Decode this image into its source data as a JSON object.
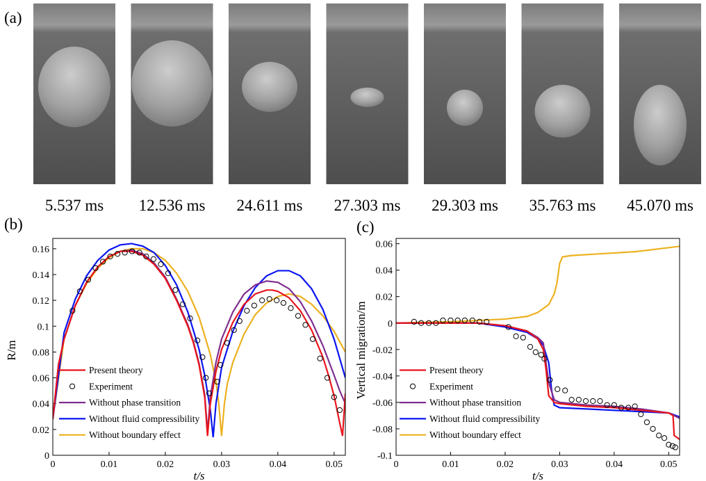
{
  "panel_a": {
    "label": "(a)",
    "frames": [
      {
        "time": "5.537 ms"
      },
      {
        "time": "12.536 ms"
      },
      {
        "time": "24.611 ms"
      },
      {
        "time": "27.303 ms"
      },
      {
        "time": "29.303 ms"
      },
      {
        "time": "35.763 ms"
      },
      {
        "time": "45.070 ms"
      }
    ]
  },
  "chart_data": [
    {
      "type": "line",
      "panel_label": "(b)",
      "x_label": "t/s",
      "y_label": "R/m",
      "xlim": [
        0,
        0.052
      ],
      "ylim": [
        0,
        0.168
      ],
      "xticks": [
        0,
        0.01,
        0.02,
        0.03,
        0.04,
        0.05
      ],
      "yticks": [
        0,
        0.02,
        0.04,
        0.06,
        0.08,
        0.1,
        0.12,
        0.14,
        0.16
      ],
      "legend": "lower left",
      "series": [
        {
          "name": "Present theory",
          "color": "#e8141c",
          "mode": "line",
          "x": [
            0,
            0.001,
            0.002,
            0.004,
            0.006,
            0.008,
            0.01,
            0.012,
            0.014,
            0.016,
            0.018,
            0.02,
            0.022,
            0.024,
            0.025,
            0.026,
            0.027,
            0.0275,
            0.028,
            0.029,
            0.03,
            0.032,
            0.034,
            0.036,
            0.038,
            0.039,
            0.04,
            0.042,
            0.044,
            0.046,
            0.048,
            0.049,
            0.05,
            0.051,
            0.0515,
            0.052
          ],
          "values": [
            0.028,
            0.07,
            0.09,
            0.116,
            0.134,
            0.146,
            0.154,
            0.158,
            0.158,
            0.155,
            0.148,
            0.137,
            0.12,
            0.1,
            0.087,
            0.07,
            0.045,
            0.015,
            0.04,
            0.065,
            0.082,
            0.103,
            0.117,
            0.125,
            0.128,
            0.128,
            0.127,
            0.122,
            0.112,
            0.097,
            0.076,
            0.062,
            0.046,
            0.025,
            0.015,
            0.048
          ]
        },
        {
          "name": "Experiment",
          "color": "#000000",
          "mode": "markers",
          "x": [
            0.0035,
            0.0048,
            0.0063,
            0.0076,
            0.0089,
            0.0102,
            0.0115,
            0.0128,
            0.0141,
            0.0154,
            0.0166,
            0.0179,
            0.0192,
            0.0205,
            0.0218,
            0.0231,
            0.0244,
            0.0257,
            0.0266,
            0.0272,
            0.0278,
            0.0292,
            0.0298,
            0.031,
            0.0322,
            0.0332,
            0.0345,
            0.0358,
            0.0372,
            0.0385,
            0.0398,
            0.041,
            0.0423,
            0.0436,
            0.0449,
            0.0462,
            0.0475,
            0.0488,
            0.05,
            0.051
          ],
          "values": [
            0.112,
            0.127,
            0.136,
            0.145,
            0.15,
            0.154,
            0.156,
            0.157,
            0.158,
            0.157,
            0.154,
            0.152,
            0.148,
            0.141,
            0.128,
            0.117,
            0.106,
            0.089,
            0.076,
            0.06,
            0.048,
            0.057,
            0.07,
            0.087,
            0.097,
            0.104,
            0.112,
            0.116,
            0.12,
            0.121,
            0.12,
            0.118,
            0.114,
            0.108,
            0.101,
            0.09,
            0.075,
            0.06,
            0.045,
            0.035
          ]
        },
        {
          "name": "Without phase transition",
          "color": "#7e2f8e",
          "mode": "line",
          "x": [
            0,
            0.001,
            0.002,
            0.004,
            0.006,
            0.008,
            0.01,
            0.012,
            0.014,
            0.016,
            0.018,
            0.02,
            0.022,
            0.024,
            0.025,
            0.026,
            0.027,
            0.0275,
            0.028,
            0.029,
            0.03,
            0.032,
            0.034,
            0.036,
            0.038,
            0.04,
            0.042,
            0.044,
            0.046,
            0.048,
            0.05,
            0.051,
            0.052
          ],
          "values": [
            0.028,
            0.07,
            0.09,
            0.116,
            0.134,
            0.146,
            0.154,
            0.158,
            0.159,
            0.156,
            0.149,
            0.138,
            0.121,
            0.101,
            0.088,
            0.071,
            0.047,
            0.018,
            0.045,
            0.072,
            0.09,
            0.111,
            0.125,
            0.132,
            0.135,
            0.134,
            0.129,
            0.119,
            0.104,
            0.085,
            0.062,
            0.05,
            0.04
          ]
        },
        {
          "name": "Without fluid compressibility",
          "color": "#0a14f0",
          "mode": "line",
          "x": [
            0,
            0.002,
            0.004,
            0.006,
            0.008,
            0.01,
            0.012,
            0.014,
            0.016,
            0.018,
            0.02,
            0.022,
            0.024,
            0.026,
            0.027,
            0.028,
            0.0285,
            0.029,
            0.03,
            0.032,
            0.034,
            0.036,
            0.038,
            0.04,
            0.042,
            0.044,
            0.046,
            0.048,
            0.05,
            0.052
          ],
          "values": [
            0.028,
            0.095,
            0.121,
            0.139,
            0.151,
            0.159,
            0.163,
            0.164,
            0.162,
            0.157,
            0.147,
            0.132,
            0.111,
            0.082,
            0.062,
            0.035,
            0.014,
            0.04,
            0.068,
            0.096,
            0.116,
            0.13,
            0.139,
            0.143,
            0.143,
            0.139,
            0.129,
            0.113,
            0.09,
            0.06
          ]
        },
        {
          "name": "Without boundary effect",
          "color": "#edb120",
          "mode": "line",
          "x": [
            0,
            0.002,
            0.004,
            0.006,
            0.008,
            0.01,
            0.012,
            0.014,
            0.016,
            0.018,
            0.02,
            0.022,
            0.024,
            0.026,
            0.028,
            0.029,
            0.0295,
            0.03,
            0.0305,
            0.031,
            0.032,
            0.034,
            0.036,
            0.038,
            0.04,
            0.042,
            0.044,
            0.046,
            0.048,
            0.05,
            0.052
          ],
          "values": [
            0.028,
            0.09,
            0.116,
            0.133,
            0.145,
            0.153,
            0.158,
            0.16,
            0.16,
            0.157,
            0.151,
            0.141,
            0.127,
            0.107,
            0.078,
            0.057,
            0.04,
            0.015,
            0.04,
            0.055,
            0.072,
            0.094,
            0.109,
            0.118,
            0.123,
            0.125,
            0.123,
            0.117,
            0.108,
            0.096,
            0.08
          ]
        }
      ]
    },
    {
      "type": "line",
      "panel_label": "(c)",
      "x_label": "t/s",
      "y_label": "Vertical migration/m",
      "xlim": [
        0,
        0.052
      ],
      "ylim": [
        -0.1,
        0.064
      ],
      "xticks": [
        0,
        0.01,
        0.02,
        0.03,
        0.04,
        0.05
      ],
      "yticks": [
        -0.1,
        -0.08,
        -0.06,
        -0.04,
        -0.02,
        0,
        0.02,
        0.04,
        0.06
      ],
      "legend": "lower left",
      "series": [
        {
          "name": "Present theory",
          "color": "#e8141c",
          "mode": "line",
          "x": [
            0,
            0.005,
            0.01,
            0.015,
            0.02,
            0.024,
            0.026,
            0.027,
            0.0275,
            0.028,
            0.029,
            0.03,
            0.035,
            0.04,
            0.045,
            0.05,
            0.0508,
            0.051,
            0.052
          ],
          "values": [
            0,
            0,
            0,
            0,
            -0.002,
            -0.006,
            -0.012,
            -0.02,
            -0.035,
            -0.055,
            -0.06,
            -0.061,
            -0.063,
            -0.064,
            -0.066,
            -0.068,
            -0.07,
            -0.085,
            -0.088
          ]
        },
        {
          "name": "Experiment",
          "color": "#000000",
          "mode": "markers",
          "x": [
            0.0033,
            0.0046,
            0.006,
            0.0073,
            0.0086,
            0.01,
            0.0113,
            0.0126,
            0.014,
            0.0153,
            0.0166,
            0.0206,
            0.022,
            0.0233,
            0.0246,
            0.0256,
            0.0266,
            0.0272,
            0.0282,
            0.0296,
            0.031,
            0.0322,
            0.0335,
            0.0348,
            0.0361,
            0.0374,
            0.0387,
            0.04,
            0.0413,
            0.0426,
            0.0438,
            0.0449,
            0.046,
            0.0471,
            0.0482,
            0.0492,
            0.05,
            0.0507,
            0.0512
          ],
          "values": [
            0.001,
            0,
            0,
            0,
            0.002,
            0.002,
            0.002,
            0.002,
            0.002,
            0.001,
            0.001,
            -0.003,
            -0.01,
            -0.011,
            -0.018,
            -0.022,
            -0.024,
            -0.027,
            -0.043,
            -0.05,
            -0.051,
            -0.058,
            -0.058,
            -0.059,
            -0.059,
            -0.059,
            -0.062,
            -0.062,
            -0.064,
            -0.064,
            -0.063,
            -0.069,
            -0.075,
            -0.08,
            -0.085,
            -0.087,
            -0.092,
            -0.093,
            -0.094
          ]
        },
        {
          "name": "Without phase transition",
          "color": "#7e2f8e",
          "mode": "line",
          "x": [
            0,
            0.005,
            0.01,
            0.015,
            0.02,
            0.024,
            0.026,
            0.027,
            0.028,
            0.029,
            0.03,
            0.035,
            0.04,
            0.045,
            0.05,
            0.052
          ],
          "values": [
            0,
            0,
            0,
            0,
            -0.002,
            -0.006,
            -0.011,
            -0.015,
            -0.045,
            -0.058,
            -0.06,
            -0.062,
            -0.063,
            -0.065,
            -0.068,
            -0.072
          ]
        },
        {
          "name": "Without fluid compressibility",
          "color": "#0a14f0",
          "mode": "line",
          "x": [
            0,
            0.005,
            0.01,
            0.015,
            0.02,
            0.024,
            0.026,
            0.027,
            0.028,
            0.0285,
            0.029,
            0.03,
            0.035,
            0.04,
            0.045,
            0.05,
            0.052
          ],
          "values": [
            0,
            0,
            0,
            0,
            -0.003,
            -0.007,
            -0.012,
            -0.017,
            -0.03,
            -0.05,
            -0.062,
            -0.064,
            -0.065,
            -0.066,
            -0.067,
            -0.068,
            -0.071
          ]
        },
        {
          "name": "Without boundary effect",
          "color": "#edb120",
          "mode": "line",
          "x": [
            0,
            0.01,
            0.02,
            0.024,
            0.026,
            0.028,
            0.029,
            0.0295,
            0.03,
            0.0305,
            0.032,
            0.036,
            0.04,
            0.044,
            0.048,
            0.052
          ],
          "values": [
            0,
            0.001,
            0.003,
            0.005,
            0.008,
            0.014,
            0.022,
            0.03,
            0.045,
            0.05,
            0.051,
            0.052,
            0.053,
            0.054,
            0.056,
            0.058
          ]
        }
      ]
    }
  ]
}
